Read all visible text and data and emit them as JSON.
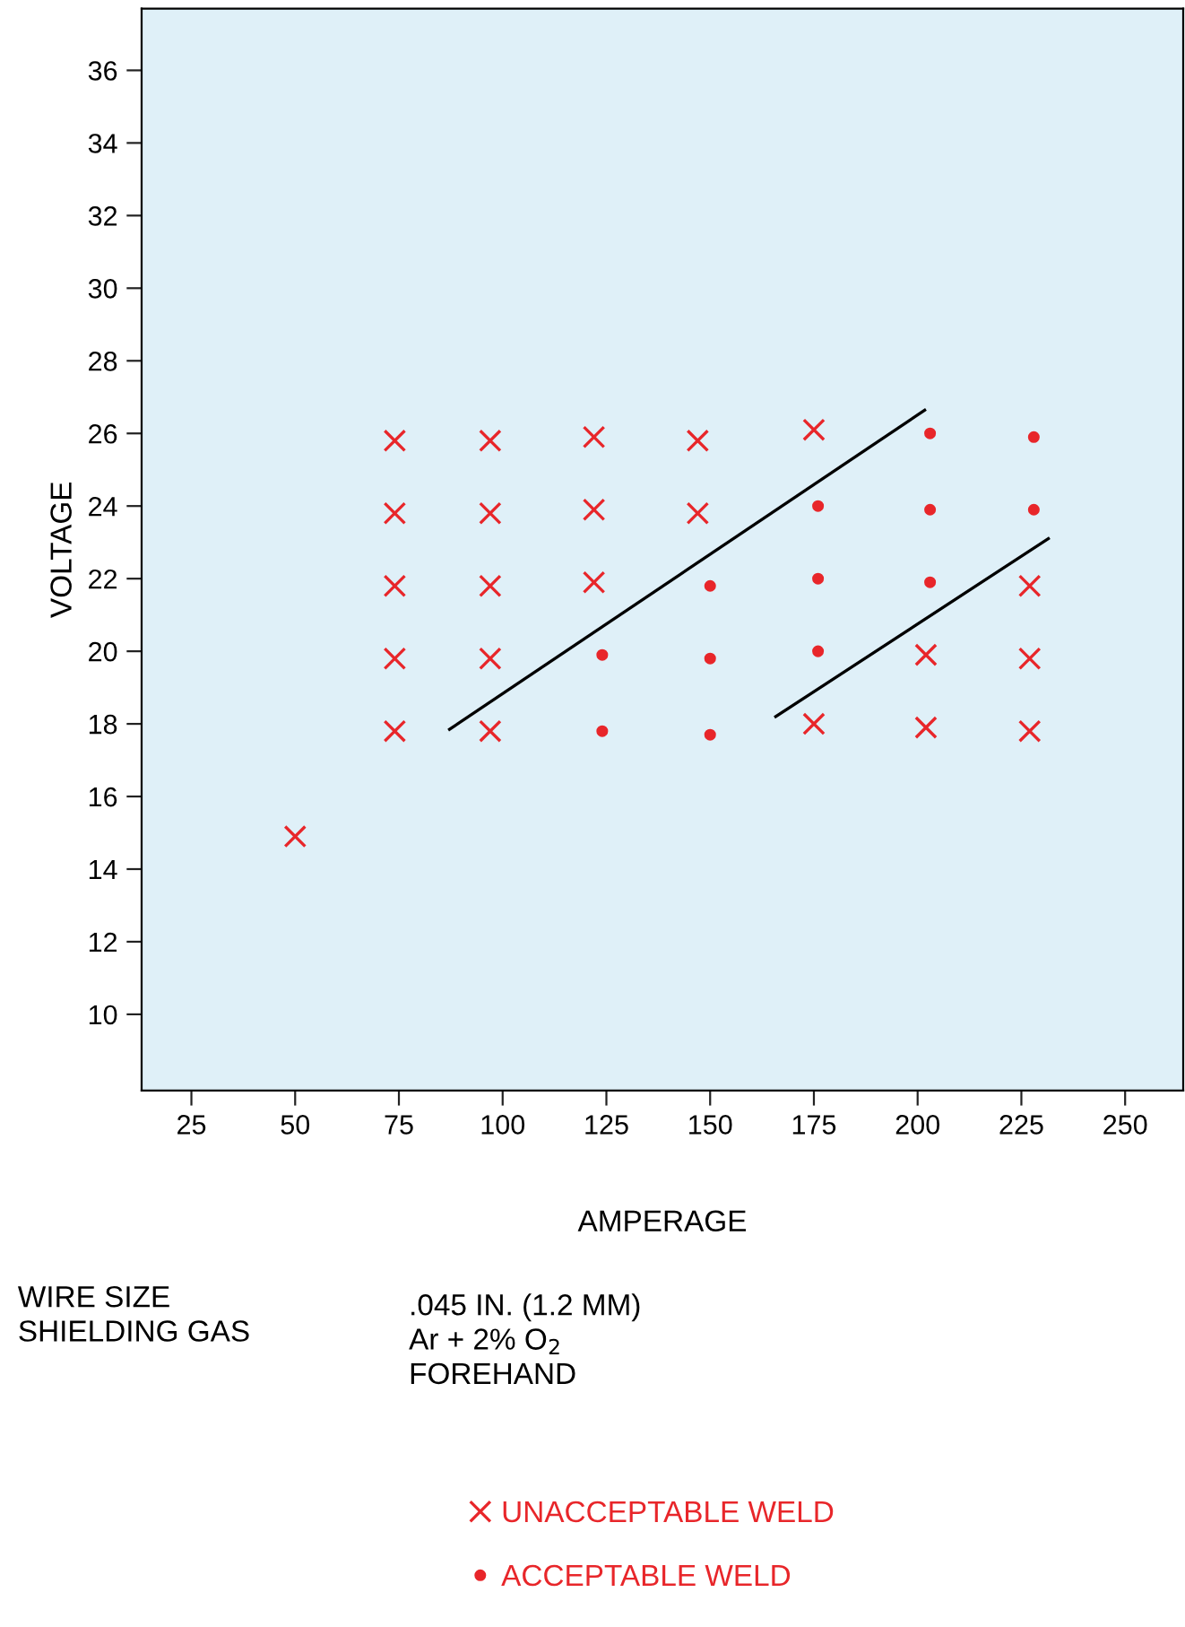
{
  "chart_data": {
    "type": "scatter",
    "xlabel": "AMPERAGE",
    "ylabel": "VOLTAGE",
    "xlim": [
      13,
      264
    ],
    "xticks": [
      25,
      50,
      75,
      100,
      125,
      150,
      175,
      200,
      225,
      250
    ],
    "ylim": [
      7.9,
      37.7
    ],
    "yticks": [
      10,
      12,
      14,
      16,
      18,
      20,
      22,
      24,
      26,
      28,
      30,
      32,
      34,
      36
    ],
    "grid": false,
    "legend": "bottom",
    "series": [
      {
        "name": "UNACCEPTABLE WELD",
        "marker": "cross",
        "color": "#e8262a",
        "x": [
          50,
          74,
          74,
          74,
          74,
          74,
          97,
          97,
          97,
          97,
          97,
          122,
          122,
          122,
          147,
          147,
          175,
          175,
          202,
          202,
          227,
          227,
          227
        ],
        "values": [
          14.9,
          25.8,
          23.8,
          21.8,
          19.8,
          17.8,
          25.8,
          23.8,
          21.8,
          19.8,
          17.8,
          25.9,
          23.9,
          21.9,
          25.8,
          23.8,
          26.1,
          18.0,
          19.9,
          17.9,
          21.8,
          19.8,
          17.8
        ]
      },
      {
        "name": "ACCEPTABLE WELD",
        "marker": "circle",
        "color": "#e8262a",
        "x": [
          124,
          124,
          150,
          150,
          150,
          176,
          176,
          176,
          203,
          203,
          203,
          228,
          228
        ],
        "values": [
          19.9,
          17.8,
          21.8,
          19.8,
          17.7,
          24.0,
          22.0,
          20.0,
          26.0,
          23.9,
          21.9,
          25.9,
          23.9
        ]
      },
      {
        "type": "line",
        "marker": "none",
        "color": "#000000",
        "x": [
          87.2,
          201.7
        ],
        "values": [
          17.85,
          26.64
        ]
      },
      {
        "type": "line",
        "marker": "none",
        "color": "#000000",
        "x": [
          165.8,
          231.5
        ],
        "values": [
          18.2,
          23.1
        ]
      }
    ],
    "annotations": [
      "WIRE SIZE\nSHIELDING GAS",
      ".045 IN. (1.2 MM)\nAr + 2% O$_{2}$\nFOREHAND"
    ]
  }
}
